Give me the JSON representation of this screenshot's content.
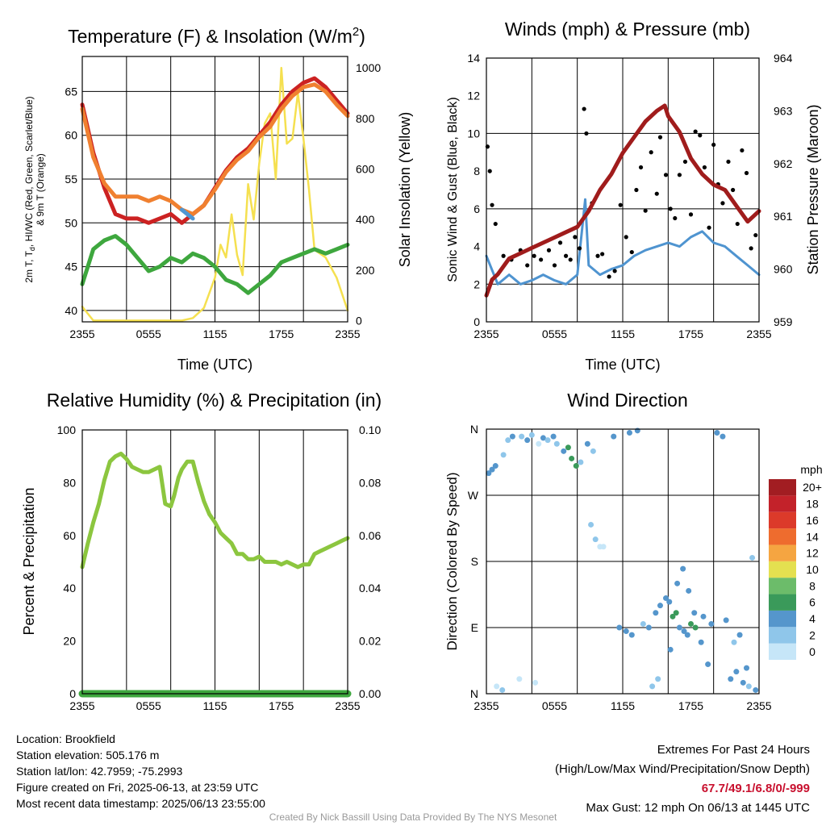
{
  "chart_data": [
    {
      "type": "line",
      "title": "Temperature (F) & Insolation (W/m",
      "title_sup": "2",
      "title_close": ")",
      "xlabel": "Time (UTC)",
      "ylabel_lines": [
        "2m T, T",
        "d",
        ", HI/WC (Red, Green, Scarlet/Blue)",
        "& 9m T (Orange)"
      ],
      "y2label": "Solar Insolation (Yellow)",
      "x_ticks": [
        "2355",
        "0555",
        "1155",
        "1755",
        "2355"
      ],
      "ylim": [
        38.7,
        69.0
      ],
      "y_ticks": [
        40,
        45,
        50,
        55,
        60,
        65
      ],
      "y2lim": [
        -5,
        1045
      ],
      "y2_ticks": [
        0,
        200,
        400,
        600,
        800,
        1000
      ],
      "x_hours": [
        0,
        1,
        2,
        3,
        4,
        5,
        6,
        7,
        8,
        9,
        10,
        11,
        12,
        13,
        14,
        15,
        16,
        17,
        18,
        19,
        20,
        21,
        22,
        23,
        24
      ],
      "series": [
        {
          "color": "#cc2222",
          "values": [
            63.5,
            58,
            54,
            51,
            50.5,
            50.5,
            50,
            50.5,
            51,
            50,
            51,
            52,
            54,
            56,
            57.5,
            58.5,
            60,
            61.5,
            63.5,
            65,
            66,
            66.5,
            65.5,
            64,
            62.5
          ]
        },
        {
          "color": "#f08030",
          "values": [
            63,
            57.5,
            54.5,
            53,
            53,
            53,
            52.5,
            53,
            52.5,
            51.5,
            51,
            52,
            53.8,
            55.8,
            57.2,
            58.2,
            59.8,
            61,
            63,
            64.5,
            65.5,
            65.8,
            65,
            63.5,
            62.2
          ]
        },
        {
          "color": "#3ea73e",
          "values": [
            43,
            47,
            48,
            48.5,
            47.5,
            46,
            44.5,
            45,
            46,
            45.5,
            46.5,
            46,
            45,
            43.5,
            43,
            42,
            43,
            44,
            45.5,
            46,
            46.5,
            47,
            46.5,
            47,
            47.5
          ]
        },
        {
          "color": "#5096d2",
          "values": [
            null,
            null,
            null,
            null,
            null,
            null,
            null,
            null,
            null,
            51.5,
            50.5,
            null,
            null,
            null,
            null,
            null,
            null,
            null,
            null,
            null,
            null,
            null,
            null,
            null,
            null
          ]
        }
      ],
      "insolation": {
        "color": "#f5e050",
        "x_hours": [
          0,
          1,
          2,
          3,
          4,
          5,
          6,
          7,
          8,
          9,
          10,
          11,
          12,
          12.5,
          13,
          13.5,
          14,
          14.5,
          15,
          15.5,
          16,
          16.5,
          17,
          17.5,
          18,
          18.5,
          19,
          19.5,
          20,
          20.5,
          21,
          22,
          23,
          24
        ],
        "values": [
          55,
          0,
          0,
          0,
          0,
          0,
          0,
          0,
          0,
          0,
          10,
          50,
          170,
          300,
          250,
          420,
          260,
          180,
          540,
          400,
          620,
          780,
          820,
          560,
          1000,
          700,
          720,
          900,
          720,
          520,
          280,
          250,
          170,
          40
        ]
      }
    },
    {
      "type": "scatter",
      "title": "Winds (mph) & Pressure (mb)",
      "xlabel": "Time (UTC)",
      "ylabel": "Sonic Wind & Gust (Blue, Black)",
      "y2label": "Station Pressure (Maroon)",
      "x_ticks": [
        "2355",
        "0555",
        "1155",
        "1755",
        "2355"
      ],
      "ylim": [
        0,
        14
      ],
      "y_ticks": [
        0,
        2,
        4,
        6,
        8,
        10,
        12,
        14
      ],
      "y2lim": [
        959,
        964
      ],
      "y2_ticks": [
        959,
        960,
        961,
        962,
        963,
        964
      ],
      "wind_color": "#4f94d0",
      "gust_color": "#000000",
      "wind": {
        "x_hours": [
          0,
          1,
          2,
          3,
          4,
          5,
          6,
          7,
          8,
          8.7,
          9,
          10,
          11,
          12,
          13,
          14,
          15,
          16,
          17,
          18,
          19,
          20,
          21,
          22,
          23,
          24
        ],
        "values": [
          3.5,
          2,
          2.5,
          2,
          2.2,
          2.5,
          2.2,
          2,
          2.5,
          6.5,
          3,
          2.5,
          2.8,
          3,
          3.5,
          3.8,
          4,
          4.2,
          4,
          4.5,
          4.8,
          4.2,
          4,
          3.5,
          3,
          2.5
        ]
      },
      "gust": {
        "x_hours": [
          0.1,
          0.3,
          0.5,
          0.8,
          1.5,
          2.2,
          3,
          3.6,
          4.2,
          4.8,
          5.5,
          6,
          6.5,
          7,
          7.4,
          7.8,
          8.2,
          8.6,
          8.8,
          9.3,
          9.8,
          10.2,
          10.8,
          11.3,
          11.8,
          12.3,
          12.8,
          13.2,
          13.6,
          14,
          14.5,
          15,
          15.3,
          15.8,
          16.2,
          16.6,
          17,
          17.5,
          18,
          18.4,
          18.8,
          19.2,
          19.6,
          20,
          20.4,
          20.8,
          21.3,
          21.7,
          22.1,
          22.5,
          22.9,
          23.3,
          23.7
        ],
        "values": [
          9.3,
          8,
          6.2,
          5.2,
          3.5,
          3.3,
          3.8,
          3,
          3.5,
          3.3,
          3.8,
          3,
          4.2,
          3.5,
          3.3,
          4.5,
          3.9,
          11.3,
          10,
          6.3,
          3.5,
          3.6,
          2.4,
          2.7,
          6.2,
          4.5,
          3.7,
          7,
          8.2,
          5.9,
          9,
          6.8,
          9.8,
          7.8,
          6,
          5.5,
          7.8,
          8.5,
          5.7,
          10.1,
          9.9,
          8.2,
          5,
          9.4,
          7.3,
          6.3,
          8.5,
          7,
          5.2,
          9.1,
          7.9,
          3.9,
          4.6
        ]
      },
      "pressure": {
        "color": "#a01c1c",
        "x_hours": [
          0,
          0.5,
          1,
          2,
          3,
          4,
          5,
          6,
          7,
          8,
          9,
          10,
          11,
          12,
          13,
          14,
          15,
          15.7,
          16,
          17,
          18,
          19,
          20,
          21,
          22,
          23,
          24
        ],
        "values": [
          959.5,
          959.8,
          959.9,
          960.2,
          960.3,
          960.4,
          960.5,
          960.6,
          960.7,
          960.8,
          961.1,
          961.5,
          961.8,
          962.2,
          962.5,
          962.8,
          963.0,
          963.1,
          962.9,
          962.6,
          962.1,
          961.8,
          961.6,
          961.5,
          961.2,
          960.9,
          961.1
        ]
      }
    },
    {
      "type": "line",
      "title": "Relative Humidity (%) & Precipitation (in)",
      "ylabel": "Percent & Precipitation",
      "x_ticks": [
        "2355",
        "0555",
        "1155",
        "1755",
        "2355"
      ],
      "ylim": [
        0,
        100
      ],
      "y_ticks": [
        0,
        20,
        40,
        60,
        80,
        100
      ],
      "y2lim": [
        0,
        0.1
      ],
      "y2_ticks": [
        "0.00",
        "0.02",
        "0.04",
        "0.06",
        "0.08",
        "0.10"
      ],
      "series": [
        {
          "color": "#8cc63f",
          "x_hours": [
            0,
            0.5,
            1,
            1.5,
            2,
            2.5,
            3,
            3.5,
            4,
            4.5,
            5,
            5.5,
            6,
            6.5,
            7,
            7.5,
            8,
            8.3,
            8.7,
            9,
            9.5,
            10,
            10.5,
            11,
            11.5,
            12,
            12.5,
            13,
            13.5,
            14,
            14.5,
            15,
            15.5,
            16,
            16.5,
            17,
            17.5,
            18,
            18.5,
            19,
            19.5,
            20,
            20.5,
            21,
            21.5,
            22,
            22.5,
            23,
            23.5,
            24
          ],
          "values": [
            48,
            57,
            65,
            72,
            81,
            88,
            90,
            91,
            89,
            86,
            85,
            84,
            84,
            85,
            86,
            72,
            71,
            75,
            82,
            85,
            88,
            88,
            80,
            73,
            68,
            65,
            61,
            59,
            57,
            53,
            53,
            51,
            51,
            52,
            50,
            50,
            50,
            49,
            50,
            49,
            48,
            49,
            49,
            53,
            54,
            55,
            56,
            57,
            58,
            59
          ]
        },
        {
          "color": "#3ea73e",
          "x_hours": [
            0,
            24
          ],
          "values": [
            0,
            0
          ]
        }
      ]
    },
    {
      "type": "scatter",
      "title": "Wind Direction",
      "ylabel": "Direction (Colored By Speed)",
      "x_ticks": [
        "2355",
        "0555",
        "1155",
        "1755",
        "2355"
      ],
      "y_ticks": [
        "N",
        "E",
        "S",
        "W",
        "N"
      ],
      "ylim": [
        0,
        360
      ],
      "colorbar": {
        "title": "mph",
        "labels": [
          "0",
          "2",
          "4",
          "6",
          "8",
          "10",
          "12",
          "14",
          "16",
          "18",
          "20+"
        ],
        "colors": [
          "#c6e6f8",
          "#8fc6ea",
          "#5596cc",
          "#3a9a5a",
          "#6cbc6a",
          "#e4e050",
          "#f5a541",
          "#ee6c2e",
          "#dc3a2a",
          "#c3222a",
          "#a21d22"
        ]
      },
      "points": {
        "x_hours": [
          0.2,
          0.5,
          0.8,
          1.5,
          1.9,
          2.3,
          3.1,
          3.6,
          4.0,
          4.6,
          5.0,
          5.4,
          5.9,
          6.2,
          6.8,
          7.2,
          7.5,
          7.9,
          8.3,
          9.2,
          9.6,
          10.0,
          10.3,
          11.7,
          12.3,
          12.8,
          13.8,
          14.3,
          14.9,
          15.3,
          15.8,
          16.1,
          16.4,
          16.7,
          17.0,
          17.4,
          17.7,
          18.0,
          18.4,
          18.9,
          19.5,
          20.3,
          20.8,
          21.5,
          22.0,
          22.6,
          23.1,
          23.7,
          0.9,
          1.4,
          2.9,
          4.3,
          8.9,
          9.4,
          11.2,
          12.6,
          13.3,
          14.6,
          15.1,
          16.2,
          16.8,
          17.3,
          17.8,
          18.3,
          19.1,
          19.8,
          21.1,
          21.8,
          22.3,
          22.9,
          23.4
        ],
        "directions": [
          300,
          305,
          310,
          325,
          345,
          350,
          350,
          345,
          352,
          340,
          348,
          345,
          350,
          340,
          330,
          335,
          320,
          310,
          315,
          230,
          210,
          200,
          200,
          90,
          85,
          80,
          95,
          90,
          110,
          120,
          130,
          125,
          105,
          110,
          90,
          85,
          80,
          95,
          90,
          70,
          40,
          355,
          350,
          20,
          30,
          15,
          10,
          5,
          10,
          5,
          20,
          15,
          340,
          330,
          350,
          355,
          358,
          10,
          20,
          60,
          150,
          170,
          140,
          110,
          105,
          95,
          100,
          70,
          80,
          35,
          185
        ],
        "speeds": [
          3,
          4,
          3,
          2,
          2,
          3,
          2,
          3,
          2,
          1,
          3,
          2,
          3,
          2,
          4,
          5,
          6,
          6,
          2,
          2,
          2,
          1,
          1,
          3,
          3,
          3,
          2,
          3,
          4,
          3,
          4,
          4,
          5,
          6,
          4,
          4,
          4,
          5,
          6,
          4,
          4,
          4,
          3,
          3,
          3,
          4,
          2,
          3,
          1,
          2,
          1,
          1,
          3,
          2,
          3,
          4,
          3,
          2,
          2,
          4,
          4,
          4,
          4,
          4,
          3,
          3,
          4,
          2,
          3,
          3,
          2
        ]
      }
    }
  ],
  "info_left": [
    "Location: Brookfield",
    "Station elevation: 505.176 m",
    "Station lat/lon: 42.7959; -75.2993",
    "Figure created on Fri, 2025-06-13, at 23:59 UTC",
    "Most recent data timestamp: 2025/06/13 23:55:00"
  ],
  "info_right": {
    "line1": "Extremes For Past 24 Hours",
    "line2": "(High/Low/Max Wind/Precipitation/Snow Depth)",
    "extremes": "67.7/49.1/6.8/0/-999",
    "gust": "Max Gust: 12 mph On 06/13 at 1445 UTC"
  },
  "credit": "Created By Nick Bassill Using Data Provided By The NYS Mesonet"
}
